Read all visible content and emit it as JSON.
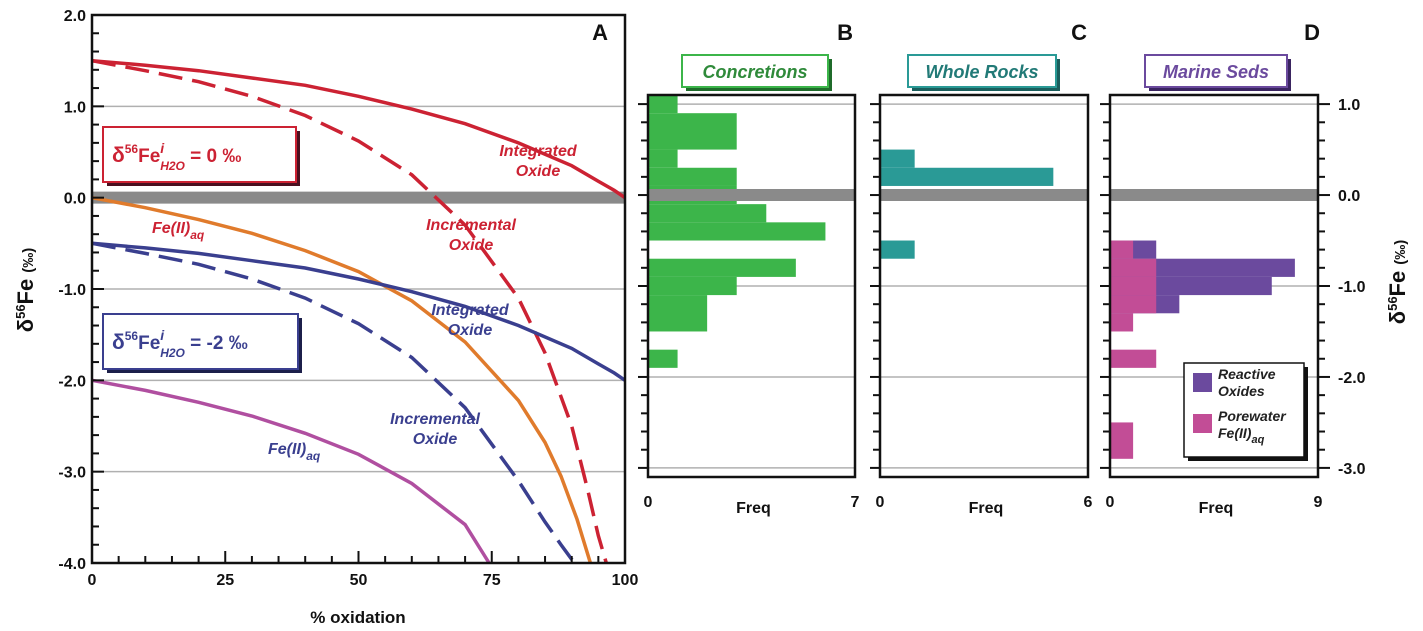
{
  "chart_data": [
    {
      "panel": "A",
      "type": "line",
      "xlabel": "% oxidation",
      "ylabel": "δ56Fe (‰)",
      "xlim": [
        0,
        100
      ],
      "ylim": [
        -4.0,
        2.0
      ],
      "xticks": [
        "0",
        "25",
        "50",
        "75",
        "100"
      ],
      "yticks": [
        "2.0",
        "1.0",
        "0.0",
        "-1.0",
        "-2.0",
        "-3.0",
        "-4.0"
      ],
      "ytick_values": [
        2.0,
        1.0,
        0.0,
        -1.0,
        -2.0,
        -3.0,
        -4.0
      ],
      "xtick_values": [
        0,
        25,
        50,
        75,
        100
      ],
      "grid": "horizontal",
      "highlight_line_y": 0.0,
      "series": [
        {
          "name": "Integrated Oxide",
          "group": "0",
          "style": "solid",
          "color": "#cc2233",
          "x": [
            0,
            10,
            20,
            30,
            40,
            50,
            60,
            70,
            80,
            90,
            95,
            98,
            100
          ],
          "y": [
            1.5,
            1.45,
            1.39,
            1.31,
            1.23,
            1.11,
            0.97,
            0.81,
            0.6,
            0.35,
            0.18,
            0.08,
            0.0
          ]
        },
        {
          "name": "Incremental Oxide",
          "group": "0",
          "style": "dashed",
          "color": "#cc2233",
          "x": [
            0,
            10,
            20,
            30,
            40,
            50,
            60,
            70,
            80,
            85,
            90,
            93,
            95,
            96.5
          ],
          "y": [
            1.5,
            1.39,
            1.27,
            1.11,
            0.9,
            0.62,
            0.25,
            -0.3,
            -1.1,
            -1.7,
            -2.5,
            -3.2,
            -3.7,
            -4.0
          ]
        },
        {
          "name": "Fe(II)aq",
          "group": "0",
          "style": "solid",
          "color": "#e07b2c",
          "x": [
            0,
            10,
            20,
            30,
            40,
            50,
            60,
            70,
            80,
            85,
            88,
            91,
            93.5
          ],
          "y": [
            0.0,
            -0.11,
            -0.24,
            -0.39,
            -0.58,
            -0.81,
            -1.13,
            -1.58,
            -2.22,
            -2.68,
            -3.05,
            -3.52,
            -4.0
          ]
        },
        {
          "name": "Integrated Oxide",
          "group": "-2",
          "style": "solid",
          "color": "#3a3f8f",
          "x": [
            0,
            10,
            20,
            30,
            40,
            50,
            60,
            70,
            80,
            90,
            95,
            98,
            100
          ],
          "y": [
            -0.5,
            -0.55,
            -0.61,
            -0.69,
            -0.77,
            -0.89,
            -1.03,
            -1.19,
            -1.4,
            -1.65,
            -1.82,
            -1.92,
            -2.0
          ]
        },
        {
          "name": "Incremental Oxide",
          "group": "-2",
          "style": "dashed",
          "color": "#3a3f8f",
          "x": [
            0,
            10,
            20,
            30,
            40,
            50,
            60,
            70,
            80,
            85,
            88,
            90.5
          ],
          "y": [
            -0.5,
            -0.61,
            -0.73,
            -0.89,
            -1.1,
            -1.38,
            -1.75,
            -2.3,
            -3.1,
            -3.55,
            -3.8,
            -4.0
          ]
        },
        {
          "name": "Fe(II)aq",
          "group": "-2",
          "style": "solid",
          "color": "#b04fa0",
          "x": [
            0,
            10,
            20,
            30,
            40,
            50,
            60,
            70,
            74.5
          ],
          "y": [
            -2.0,
            -2.11,
            -2.24,
            -2.39,
            -2.58,
            -2.81,
            -3.13,
            -3.58,
            -4.0
          ]
        }
      ]
    },
    {
      "panel": "B",
      "type": "bar",
      "orientation": "horizontal",
      "title": "Concretions",
      "xlabel": "Freq",
      "xlim": [
        0,
        7
      ],
      "xticks": [
        "0",
        "7"
      ],
      "color": "#3cb54a",
      "bins": [
        {
          "y": [
            0.9,
            1.1
          ],
          "value": 1
        },
        {
          "y": [
            0.5,
            0.9
          ],
          "value": 3
        },
        {
          "y": [
            0.3,
            0.5
          ],
          "value": 1
        },
        {
          "y": [
            0.1,
            0.3
          ],
          "value": 3
        },
        {
          "y": [
            -0.1,
            0.1
          ],
          "value": 3
        },
        {
          "y": [
            -0.3,
            -0.1
          ],
          "value": 4
        },
        {
          "y": [
            -0.5,
            -0.3
          ],
          "value": 6
        },
        {
          "y": [
            -0.9,
            -0.7
          ],
          "value": 5
        },
        {
          "y": [
            -1.1,
            -0.9
          ],
          "value": 3
        },
        {
          "y": [
            -1.5,
            -1.1
          ],
          "value": 2
        },
        {
          "y": [
            -1.9,
            -1.7
          ],
          "value": 1
        }
      ]
    },
    {
      "panel": "C",
      "type": "bar",
      "orientation": "horizontal",
      "title": "Whole Rocks",
      "xlabel": "Freq",
      "xlim": [
        0,
        6
      ],
      "xticks": [
        "0",
        "6"
      ],
      "color": "#2a9a96",
      "bins": [
        {
          "y": [
            0.3,
            0.5
          ],
          "value": 1
        },
        {
          "y": [
            0.1,
            0.3
          ],
          "value": 5
        },
        {
          "y": [
            -0.7,
            -0.5
          ],
          "value": 1
        }
      ]
    },
    {
      "panel": "D",
      "type": "bar",
      "orientation": "horizontal",
      "title": "Marine Seds",
      "xlabel": "Freq",
      "xlim": [
        0,
        9
      ],
      "xticks": [
        "0",
        "9"
      ],
      "ylabel": "δ56Fe (‰)",
      "yticks": [
        "1.0",
        "0.0",
        "-1.0",
        "-2.0",
        "-3.0"
      ],
      "ytick_values": [
        1.0,
        0.0,
        -1.0,
        -2.0,
        -3.0
      ],
      "series": [
        {
          "name": "Reactive Oxides",
          "color": "#6b4a9e",
          "bins": [
            {
              "y": [
                -0.7,
                -0.5
              ],
              "value": 2
            },
            {
              "y": [
                -0.9,
                -0.7
              ],
              "value": 8
            },
            {
              "y": [
                -1.1,
                -0.9
              ],
              "value": 7
            },
            {
              "y": [
                -1.3,
                -1.1
              ],
              "value": 3
            }
          ]
        },
        {
          "name": "Porewater Fe(II)aq",
          "color": "#c24d96",
          "bins": [
            {
              "y": [
                -0.7,
                -0.5
              ],
              "value": 1
            },
            {
              "y": [
                -0.9,
                -0.7
              ],
              "value": 2
            },
            {
              "y": [
                -1.1,
                -0.9
              ],
              "value": 2
            },
            {
              "y": [
                -1.3,
                -1.1
              ],
              "value": 2
            },
            {
              "y": [
                -1.5,
                -1.3
              ],
              "value": 1
            },
            {
              "y": [
                -1.9,
                -1.7
              ],
              "value": 2
            },
            {
              "y": [
                -2.9,
                -2.5
              ],
              "value": 1
            }
          ]
        }
      ],
      "legend": "bottom-right"
    }
  ],
  "panel_letters": {
    "a": "A",
    "b": "B",
    "c": "C",
    "d": "D"
  },
  "equations": {
    "upper": {
      "prefix": "δ",
      "sup": "56",
      "fe": "Fe",
      "sup_i": "i",
      "sub": "H2O",
      "suffix": " = 0 ‰"
    },
    "lower": {
      "prefix": "δ",
      "sup": "56",
      "fe": "Fe",
      "sup_i": "i",
      "sub": "H2O",
      "suffix": " = -2 ‰"
    }
  },
  "curve_labels": {
    "int_ox_0_line1": "Integrated",
    "int_ox_0_line2": "Oxide",
    "inc_ox_0_line1": "Incremental",
    "inc_ox_0_line2": "Oxide",
    "feii_0": "Fe(II)",
    "feii_0_sub": "aq",
    "int_ox_2_line1": "Integrated",
    "int_ox_2_line2": "Oxide",
    "inc_ox_2_line1": "Incremental",
    "inc_ox_2_line2": "Oxide",
    "feii_2": "Fe(II)",
    "feii_2_sub": "aq"
  },
  "axis_text": {
    "a_ylabel_delta": "δ",
    "a_ylabel_sup": "56",
    "a_ylabel_fe": "Fe",
    "a_ylabel_unit": "(‰)",
    "d_ylabel_delta": "δ",
    "d_ylabel_sup": "56",
    "d_ylabel_fe": "Fe",
    "d_ylabel_unit": "(‰)"
  },
  "legend_d": {
    "item1_line1": "Reactive",
    "item1_line2": "Oxides",
    "item2_line1": "Porewater",
    "item2_line2": "Fe(II)",
    "item2_sub": "aq"
  },
  "colors": {
    "red": "#cc2233",
    "navy": "#3a3f8f",
    "orange": "#e07b2c",
    "magenta": "#b04fa0",
    "gray_band": "#8a8a8a",
    "green": "#3cb54a",
    "teal": "#2a9a96",
    "purple": "#6b4a9e",
    "pink": "#c24d96"
  }
}
